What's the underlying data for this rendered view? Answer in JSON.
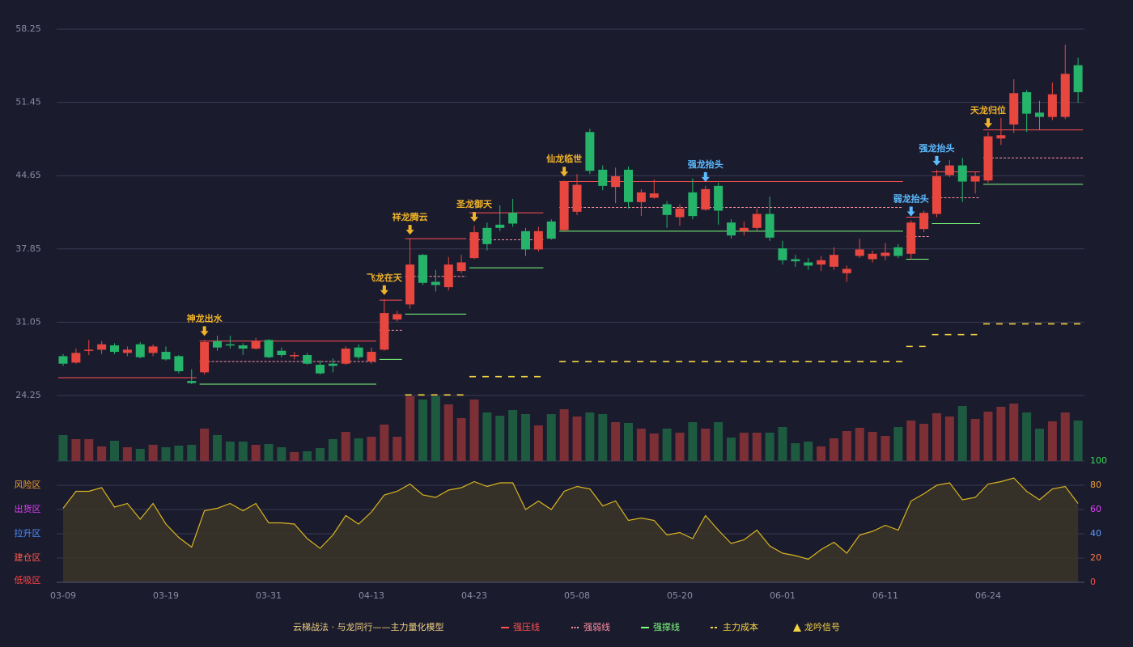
{
  "chart_data": {
    "type": "candlestick",
    "ylim": [
      24.25,
      58.25
    ],
    "yticks": [
      24.25,
      31.05,
      37.85,
      44.65,
      51.45,
      58.25
    ],
    "up_color": "#e8473f",
    "down_color": "#26b36a",
    "categories": [
      "03-09",
      null,
      null,
      null,
      null,
      null,
      null,
      null,
      "03-19",
      null,
      null,
      null,
      null,
      null,
      null,
      null,
      "03-31",
      null,
      null,
      null,
      null,
      null,
      null,
      null,
      "04-13",
      null,
      null,
      null,
      null,
      null,
      null,
      null,
      "04-23",
      null,
      null,
      null,
      null,
      null,
      null,
      null,
      "05-08",
      null,
      null,
      null,
      null,
      null,
      null,
      null,
      "05-20",
      null,
      null,
      null,
      null,
      null,
      null,
      null,
      "06-01",
      null,
      null,
      null,
      null,
      null,
      null,
      null,
      "06-11",
      null,
      null,
      null,
      null,
      null,
      null,
      null,
      "06-24",
      null,
      null,
      null,
      null,
      null,
      null,
      null
    ],
    "ohlc": [
      [
        27.9,
        28.1,
        27.0,
        27.2
      ],
      [
        27.3,
        28.6,
        27.2,
        28.2
      ],
      [
        28.4,
        29.4,
        28.0,
        28.5
      ],
      [
        28.5,
        29.3,
        28.1,
        29.0
      ],
      [
        28.9,
        29.1,
        28.1,
        28.3
      ],
      [
        28.2,
        28.8,
        27.9,
        28.5
      ],
      [
        29.0,
        29.2,
        27.7,
        27.8
      ],
      [
        28.2,
        29.0,
        27.9,
        28.8
      ],
      [
        28.3,
        28.8,
        27.5,
        27.6
      ],
      [
        27.9,
        28.0,
        26.3,
        26.5
      ],
      [
        25.6,
        26.7,
        25.3,
        25.4
      ],
      [
        26.4,
        29.4,
        26.2,
        29.2
      ],
      [
        29.3,
        29.8,
        28.4,
        28.7
      ],
      [
        29.0,
        29.8,
        28.6,
        28.9
      ],
      [
        28.9,
        29.1,
        28.0,
        28.6
      ],
      [
        28.6,
        29.6,
        28.5,
        29.3
      ],
      [
        29.4,
        29.5,
        27.7,
        27.8
      ],
      [
        28.4,
        28.7,
        27.8,
        28.0
      ],
      [
        27.9,
        28.3,
        27.6,
        28.0
      ],
      [
        28.0,
        28.2,
        27.1,
        27.2
      ],
      [
        27.1,
        27.5,
        26.2,
        26.3
      ],
      [
        27.2,
        27.7,
        26.4,
        27.0
      ],
      [
        27.2,
        28.8,
        27.1,
        28.6
      ],
      [
        28.7,
        29.0,
        27.6,
        27.8
      ],
      [
        27.4,
        28.7,
        27.2,
        28.3
      ],
      [
        28.5,
        33.2,
        28.4,
        31.9
      ],
      [
        31.3,
        32.1,
        31.1,
        31.8
      ],
      [
        32.7,
        38.8,
        32.3,
        36.4
      ],
      [
        37.3,
        37.4,
        34.5,
        34.7
      ],
      [
        34.8,
        35.9,
        33.9,
        34.5
      ],
      [
        34.3,
        37.1,
        34.0,
        36.4
      ],
      [
        35.8,
        37.3,
        35.6,
        36.6
      ],
      [
        37.0,
        40.0,
        36.9,
        39.4
      ],
      [
        39.8,
        40.3,
        37.7,
        38.3
      ],
      [
        40.1,
        41.9,
        39.5,
        39.8
      ],
      [
        41.2,
        42.5,
        39.9,
        40.2
      ],
      [
        39.5,
        39.8,
        37.2,
        37.8
      ],
      [
        37.8,
        39.9,
        37.6,
        39.5
      ],
      [
        40.4,
        40.6,
        38.7,
        38.8
      ],
      [
        39.6,
        44.2,
        39.5,
        44.1
      ],
      [
        41.3,
        44.8,
        41.0,
        43.8
      ],
      [
        48.7,
        49.0,
        44.8,
        45.1
      ],
      [
        45.2,
        45.6,
        43.3,
        43.7
      ],
      [
        43.6,
        45.4,
        42.1,
        44.6
      ],
      [
        45.2,
        45.5,
        41.6,
        42.2
      ],
      [
        42.2,
        43.4,
        40.9,
        43.1
      ],
      [
        42.6,
        44.3,
        42.5,
        43.0
      ],
      [
        42.0,
        42.3,
        39.8,
        41.0
      ],
      [
        40.8,
        42.0,
        40.0,
        41.6
      ],
      [
        43.1,
        44.4,
        40.6,
        40.9
      ],
      [
        41.5,
        43.7,
        41.4,
        43.4
      ],
      [
        43.7,
        44.0,
        40.1,
        41.4
      ],
      [
        40.3,
        40.6,
        38.8,
        39.1
      ],
      [
        39.5,
        40.4,
        39.1,
        39.8
      ],
      [
        39.8,
        41.6,
        39.5,
        41.1
      ],
      [
        41.1,
        42.7,
        38.6,
        38.9
      ],
      [
        37.9,
        38.6,
        36.4,
        36.8
      ],
      [
        36.9,
        37.3,
        36.2,
        36.7
      ],
      [
        36.6,
        37.0,
        35.9,
        36.3
      ],
      [
        36.4,
        37.2,
        35.8,
        36.8
      ],
      [
        36.2,
        38.0,
        35.9,
        37.3
      ],
      [
        35.6,
        36.3,
        34.8,
        36.0
      ],
      [
        37.2,
        38.8,
        37.0,
        37.8
      ],
      [
        36.9,
        37.7,
        36.6,
        37.4
      ],
      [
        37.2,
        38.4,
        36.8,
        37.5
      ],
      [
        38.0,
        38.3,
        37.0,
        37.2
      ],
      [
        37.4,
        40.5,
        36.9,
        40.3
      ],
      [
        39.7,
        41.4,
        39.4,
        41.2
      ],
      [
        41.1,
        45.2,
        40.8,
        44.6
      ],
      [
        44.7,
        46.1,
        44.5,
        45.6
      ],
      [
        45.6,
        46.3,
        42.2,
        44.1
      ],
      [
        44.1,
        45.0,
        43.0,
        44.6
      ],
      [
        44.2,
        48.7,
        44.0,
        48.3
      ],
      [
        48.1,
        50.0,
        47.5,
        48.4
      ],
      [
        49.4,
        53.6,
        48.6,
        52.3
      ],
      [
        52.4,
        52.6,
        48.7,
        50.4
      ],
      [
        50.5,
        51.6,
        48.9,
        50.1
      ],
      [
        50.1,
        53.3,
        49.8,
        52.2
      ],
      [
        50.1,
        56.8,
        49.9,
        54.1
      ],
      [
        54.9,
        55.6,
        51.4,
        52.4
      ]
    ],
    "levels": [
      {
        "start": 0,
        "end": 10,
        "resist": 25.9
      },
      {
        "start": 11,
        "end": 24,
        "resist": 29.3,
        "mid": 27.4,
        "support": 25.3
      },
      {
        "start": 25,
        "end": 26,
        "resist": 33.1,
        "mid": 30.3,
        "support": 27.6
      },
      {
        "start": 27,
        "end": 31,
        "resist": 38.8,
        "mid": 35.3,
        "support": 31.8,
        "cost": 24.3
      },
      {
        "start": 32,
        "end": 37,
        "resist": 41.2,
        "mid": 38.7,
        "support": 36.1,
        "cost": 26.0
      },
      {
        "start": 39,
        "end": 65,
        "resist": 44.1,
        "mid": 41.7,
        "support": 39.5,
        "cost": 27.4
      },
      {
        "start": 66,
        "end": 67,
        "resist": 40.8,
        "mid": 39.0,
        "support": 36.9,
        "cost": 28.8
      },
      {
        "start": 68,
        "end": 71,
        "resist": 45.0,
        "mid": 42.6,
        "support": 40.2,
        "cost": 29.9
      },
      {
        "start": 72,
        "end": 79,
        "resist": 48.9,
        "mid": 46.3,
        "support": 43.85,
        "cost": 30.9
      }
    ],
    "signals": [
      {
        "label": "神龙出水",
        "index": 11,
        "color": "#f0b429"
      },
      {
        "label": "飞龙在天",
        "index": 25,
        "color": "#f0b429"
      },
      {
        "label": "祥龙腾云",
        "index": 27,
        "color": "#f0b429"
      },
      {
        "label": "圣龙御天",
        "index": 32,
        "color": "#f0b429"
      },
      {
        "label": "仙龙临世",
        "index": 39,
        "color": "#f0b429"
      },
      {
        "label": "强龙抬头",
        "index": 50,
        "color": "#5cbcff"
      },
      {
        "label": "弱龙抬头",
        "index": 66,
        "color": "#5cbcff"
      },
      {
        "label": "强龙抬头",
        "index": 68,
        "color": "#5cbcff"
      },
      {
        "label": "天龙归位",
        "index": 72,
        "color": "#f0b429"
      }
    ],
    "volume": {
      "type": "bar",
      "up_color": "#7c2f35",
      "down_color": "#1e5a40",
      "values": [
        32,
        27,
        27,
        18,
        25,
        17,
        15,
        20,
        17,
        19,
        20,
        40,
        32,
        24,
        24,
        20,
        21,
        17,
        11,
        12,
        16,
        27,
        36,
        28,
        30,
        45,
        30,
        80,
        76,
        80,
        70,
        53,
        76,
        60,
        56,
        63,
        58,
        44,
        58,
        64,
        55,
        60,
        58,
        48,
        47,
        40,
        34,
        40,
        35,
        48,
        40,
        48,
        29,
        35,
        35,
        35,
        42,
        22,
        24,
        18,
        28,
        37,
        41,
        36,
        31,
        42,
        50,
        46,
        59,
        55,
        68,
        52,
        61,
        67,
        71,
        60,
        40,
        49,
        60,
        50
      ]
    },
    "oscillator": {
      "type": "line",
      "color": "#d8b520",
      "fill": "#3a3427",
      "ylim": [
        0,
        100
      ],
      "yticks": [
        {
          "value": 0,
          "color": "#ff4d4d"
        },
        {
          "value": 20,
          "color": "#ff7a45"
        },
        {
          "value": 40,
          "color": "#5c9dff"
        },
        {
          "value": 60,
          "color": "#e040fb"
        },
        {
          "value": 80,
          "color": "#f0a030"
        },
        {
          "value": 100,
          "color": "#33dd55"
        }
      ],
      "zones": [
        {
          "label": "风险区",
          "value": 80,
          "color": "#f0a030"
        },
        {
          "label": "出货区",
          "value": 60,
          "color": "#e040fb"
        },
        {
          "label": "拉升区",
          "value": 40,
          "color": "#4a90ff"
        },
        {
          "label": "建仓区",
          "value": 20,
          "color": "#ff5a4a"
        },
        {
          "label": "低吸区",
          "value": 0,
          "color": "#ff4444"
        }
      ],
      "values": [
        61,
        75,
        75,
        78,
        62,
        65,
        52,
        65,
        48,
        37,
        29,
        59,
        61,
        65,
        59,
        65,
        49,
        49,
        48,
        36,
        28,
        39,
        55,
        48,
        58,
        72,
        75,
        81,
        72,
        70,
        76,
        78,
        83,
        79,
        82,
        82,
        60,
        67,
        60,
        75,
        79,
        77,
        63,
        67,
        51,
        53,
        51,
        39,
        41,
        36,
        55,
        43,
        32,
        35,
        43,
        30,
        24,
        22,
        19,
        27,
        33,
        24,
        39,
        42,
        47,
        43,
        67,
        73,
        80,
        82,
        68,
        70,
        81,
        83,
        86,
        75,
        68,
        77,
        79,
        65
      ]
    },
    "legend": {
      "title": "云梯战法 · 与龙同行——主力量化模型",
      "title_color": "#f0d080",
      "items": [
        {
          "label": "强压线",
          "color": "#ff5050"
        },
        {
          "label": "强弱线",
          "color": "#ff8fa0"
        },
        {
          "label": "强撑线",
          "color": "#7cff7c"
        },
        {
          "label": "主力成本",
          "color": "#f5d442"
        },
        {
          "label": "龙吟信号",
          "color": "#f5d442"
        }
      ]
    }
  }
}
